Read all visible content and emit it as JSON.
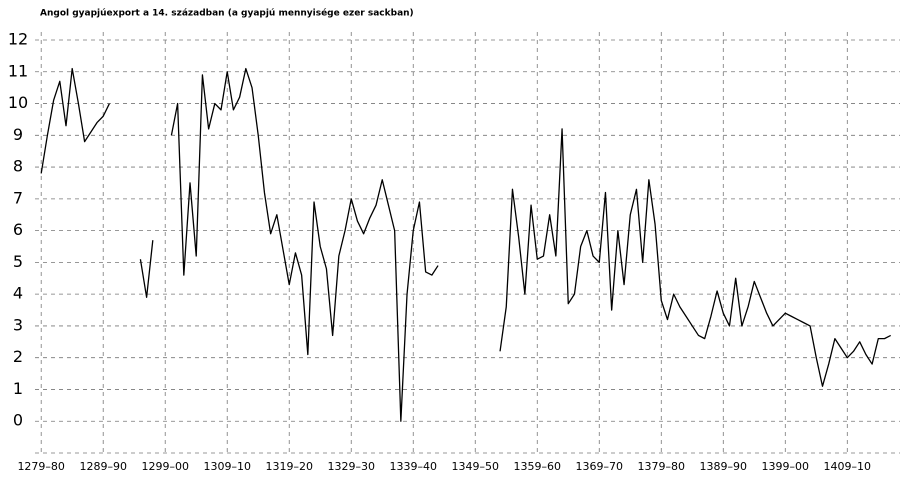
{
  "chart_data": {
    "type": "line",
    "title": "Angol gyapjúexport a 14. században (a gyapjú mennyisége ezer sackban)",
    "x": [
      1279,
      1280,
      1281,
      1282,
      1283,
      1284,
      1285,
      1286,
      1287,
      1288,
      1289,
      1290,
      1291,
      1292,
      1293,
      1294,
      1295,
      1296,
      1297,
      1298,
      1299,
      1300,
      1301,
      1302,
      1303,
      1304,
      1305,
      1306,
      1307,
      1308,
      1309,
      1310,
      1311,
      1312,
      1313,
      1314,
      1315,
      1316,
      1317,
      1318,
      1319,
      1320,
      1321,
      1322,
      1323,
      1324,
      1325,
      1326,
      1327,
      1328,
      1329,
      1330,
      1331,
      1332,
      1333,
      1334,
      1335,
      1336,
      1337,
      1338,
      1339,
      1340,
      1341,
      1342,
      1343,
      1344,
      1345,
      1346,
      1347,
      1348,
      1349,
      1350,
      1351,
      1352,
      1353,
      1354,
      1355,
      1356,
      1357,
      1358,
      1359,
      1360,
      1361,
      1362,
      1363,
      1364,
      1365,
      1366,
      1367,
      1368,
      1369,
      1370,
      1371,
      1372,
      1373,
      1374,
      1375,
      1376,
      1377,
      1378,
      1379,
      1380,
      1381,
      1382,
      1383,
      1384,
      1385,
      1386,
      1387,
      1388,
      1389,
      1390,
      1391,
      1392,
      1393,
      1394,
      1395,
      1396,
      1397,
      1398,
      1399,
      1400,
      1401,
      1402,
      1403,
      1404,
      1405,
      1406,
      1407,
      1408,
      1409,
      1410,
      1411,
      1412,
      1413,
      1414,
      1415,
      1416
    ],
    "series": [
      {
        "color": "#000000",
        "values": [
          7.8,
          9.0,
          10.1,
          10.7,
          9.3,
          11.1,
          10.0,
          8.8,
          9.1,
          9.4,
          9.6,
          10.0,
          null,
          null,
          null,
          null,
          5.1,
          3.9,
          5.7,
          null,
          null,
          9.0,
          10.0,
          4.6,
          7.5,
          5.2,
          10.9,
          9.2,
          10.0,
          9.8,
          11.0,
          9.8,
          10.2,
          11.1,
          10.5,
          9.0,
          7.2,
          5.9,
          6.5,
          5.4,
          4.3,
          5.3,
          4.6,
          2.1,
          6.9,
          5.5,
          4.8,
          2.7,
          5.2,
          6.0,
          7.0,
          6.3,
          5.9,
          6.4,
          6.8,
          7.6,
          6.8,
          6.0,
          0.0,
          4.0,
          6.0,
          6.9,
          4.7,
          4.6,
          4.9,
          null,
          null,
          null,
          null,
          null,
          null,
          null,
          null,
          null,
          2.2,
          3.6,
          7.3,
          5.8,
          4.0,
          6.8,
          5.1,
          5.2,
          6.5,
          5.2,
          9.2,
          3.7,
          4.0,
          5.5,
          6.0,
          5.2,
          5.0,
          7.2,
          3.5,
          6.0,
          4.3,
          6.5,
          7.3,
          5.0,
          7.6,
          6.2,
          3.8,
          3.2,
          4.0,
          3.6,
          3.3,
          3.0,
          2.7,
          2.6,
          3.3,
          4.1,
          3.4,
          3.0,
          4.5,
          3.0,
          3.6,
          4.4,
          3.9,
          3.4,
          3.0,
          3.2,
          3.4,
          3.3,
          3.2,
          3.1,
          3.0,
          2.0,
          1.1,
          1.8,
          2.6,
          2.3,
          2.0,
          2.2,
          2.5,
          2.1,
          1.8,
          2.6,
          2.6,
          2.7
        ]
      }
    ],
    "xlim": [
      1278,
      1417.5
    ],
    "xticks": [
      {
        "value": 1279,
        "label": "1279–80"
      },
      {
        "value": 1289,
        "label": "1289–90"
      },
      {
        "value": 1299,
        "label": "1299–00"
      },
      {
        "value": 1309,
        "label": "1309–10"
      },
      {
        "value": 1319,
        "label": "1319–20"
      },
      {
        "value": 1329,
        "label": "1329–30"
      },
      {
        "value": 1339,
        "label": "1339–40"
      },
      {
        "value": 1349,
        "label": "1349–50"
      },
      {
        "value": 1359,
        "label": "1359–60"
      },
      {
        "value": 1369,
        "label": "1369–70"
      },
      {
        "value": 1379,
        "label": "1379–80"
      },
      {
        "value": 1389,
        "label": "1389–90"
      },
      {
        "value": 1399,
        "label": "1399–00"
      },
      {
        "value": 1409,
        "label": "1409–10"
      }
    ],
    "ylim": [
      -1,
      12
    ],
    "yticks": [
      0,
      1,
      2,
      3,
      4,
      5,
      6,
      7,
      8,
      9,
      10,
      11,
      12
    ],
    "grid": true
  }
}
